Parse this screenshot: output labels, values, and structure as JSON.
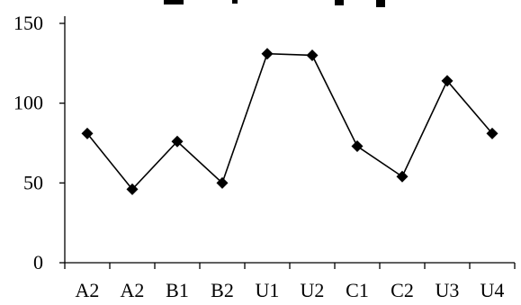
{
  "chart_data": {
    "type": "line",
    "title": "",
    "xlabel": "",
    "ylabel": "",
    "categories": [
      "A2",
      "A2",
      "B1",
      "B2",
      "U1",
      "U2",
      "C1",
      "C2",
      "U3",
      "U4"
    ],
    "series": [
      {
        "values": [
          81,
          46,
          76,
          50,
          131,
          130,
          73,
          54,
          114,
          81
        ],
        "color": "#000000",
        "marker": "diamond"
      }
    ],
    "ylim": [
      0,
      150
    ],
    "yticks": [
      0,
      50,
      100,
      150
    ],
    "grid": false,
    "legend": "none"
  }
}
